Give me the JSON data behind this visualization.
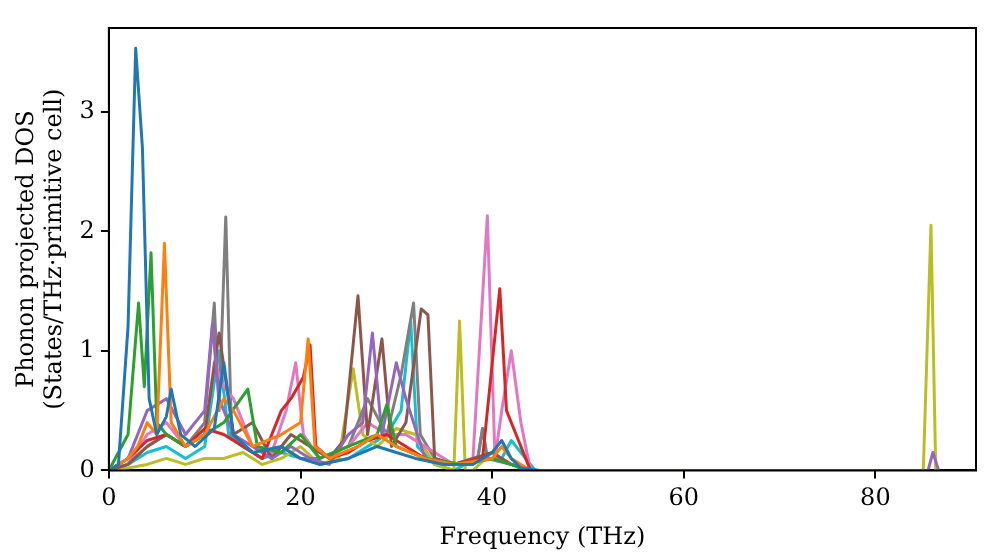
{
  "chart_data": {
    "type": "line",
    "xlabel": "Frequency (THz)",
    "ylabel": "Phonon projected DOS\n(States/THz·primitive cell)",
    "xlim": [
      0,
      90.5
    ],
    "xticks": [
      0,
      20,
      40,
      60,
      80
    ],
    "ylim": [
      0,
      3.7
    ],
    "yticks": [
      0,
      1,
      2,
      3
    ],
    "grid": false,
    "legend": false,
    "marker": "none",
    "line_style": "solid",
    "series": [
      {
        "color": "#1f77b4",
        "x": [
          0,
          1,
          2,
          2.8,
          3.5,
          4.2,
          5,
          6,
          6.5,
          7.5,
          9,
          11,
          12,
          13,
          15,
          18,
          20,
          22,
          25,
          28,
          30,
          32,
          35,
          38,
          40,
          41,
          42,
          43,
          45
        ],
        "values": [
          0,
          0.05,
          1.2,
          3.53,
          2.7,
          0.6,
          0.3,
          0.45,
          0.68,
          0.3,
          0.2,
          0.35,
          0.9,
          0.3,
          0.15,
          0.2,
          0.1,
          0.05,
          0.1,
          0.2,
          0.15,
          0.1,
          0.05,
          0.05,
          0.15,
          0.25,
          0.1,
          0.02,
          0
        ]
      },
      {
        "color": "#ff7f0e",
        "x": [
          0,
          2,
          3,
          4,
          5,
          5.8,
          6.5,
          8,
          10,
          12,
          13,
          15,
          18,
          20,
          20.8,
          21.5,
          23,
          26,
          28,
          30,
          33,
          36,
          40,
          41,
          42,
          44
        ],
        "values": [
          0,
          0.1,
          0.2,
          0.4,
          0.3,
          1.9,
          0.4,
          0.2,
          0.3,
          0.6,
          0.5,
          0.2,
          0.3,
          0.4,
          1.1,
          0.2,
          0.1,
          0.2,
          0.3,
          0.2,
          0.1,
          0.05,
          0.1,
          0.2,
          0.1,
          0
        ]
      },
      {
        "color": "#2ca02c",
        "x": [
          0,
          2,
          3.1,
          3.7,
          4.4,
          5,
          6,
          8,
          10,
          12,
          14.5,
          15.5,
          18,
          20,
          22,
          25,
          28,
          29,
          30,
          33,
          37,
          40,
          42,
          43.5
        ],
        "values": [
          0,
          0.3,
          1.4,
          0.7,
          1.82,
          0.4,
          0.3,
          0.2,
          0.3,
          0.4,
          0.68,
          0.2,
          0.15,
          0.3,
          0.1,
          0.2,
          0.3,
          0.55,
          0.2,
          0.1,
          0.05,
          0.1,
          0.05,
          0
        ]
      },
      {
        "color": "#d62728",
        "x": [
          0,
          2,
          4,
          6,
          8,
          10,
          12,
          14,
          16,
          18,
          19,
          20.3,
          21,
          21.6,
          23,
          25,
          27,
          29,
          31,
          33,
          36,
          39,
          40.8,
          41.5,
          42.5,
          44
        ],
        "values": [
          0,
          0.1,
          0.25,
          0.3,
          0.2,
          0.35,
          0.3,
          0.2,
          0.1,
          0.5,
          0.6,
          0.78,
          1.05,
          0.2,
          0.1,
          0.15,
          0.25,
          0.3,
          0.2,
          0.1,
          0.05,
          0.1,
          1.52,
          0.5,
          0.3,
          0
        ]
      },
      {
        "color": "#9467bd",
        "x": [
          0,
          2,
          4,
          6,
          8,
          10,
          10.8,
          11.5,
          13,
          15,
          17,
          19,
          21,
          23,
          25,
          26.5,
          27.5,
          28.5,
          30,
          31,
          33,
          36,
          40,
          42,
          44,
          85.5,
          86,
          86.6
        ],
        "values": [
          0,
          0.1,
          0.5,
          0.6,
          0.3,
          0.5,
          1.22,
          0.6,
          0.3,
          0.2,
          0.1,
          0.2,
          0.1,
          0.05,
          0.3,
          0.4,
          1.15,
          0.3,
          0.9,
          0.6,
          0.1,
          0.05,
          0.1,
          0.05,
          0,
          0,
          0.15,
          0
        ]
      },
      {
        "color": "#8c564b",
        "x": [
          0,
          2,
          4,
          6,
          8,
          10,
          11.5,
          13,
          15,
          17,
          19,
          21,
          23,
          24.5,
          26,
          27,
          28.5,
          29.5,
          31,
          32.6,
          33.3,
          34,
          36,
          40,
          42,
          44
        ],
        "values": [
          0,
          0.05,
          0.2,
          0.3,
          0.2,
          0.3,
          1.15,
          0.3,
          0.4,
          0.1,
          0.3,
          0.2,
          0.1,
          0.25,
          1.46,
          0.3,
          1.1,
          0.2,
          0.4,
          1.35,
          1.3,
          0.1,
          0.05,
          0.15,
          0.05,
          0
        ]
      },
      {
        "color": "#e377c2",
        "x": [
          0,
          2,
          4,
          6,
          8,
          10,
          11,
          12,
          13,
          15,
          17,
          18.5,
          19.5,
          20.3,
          22,
          25,
          27,
          29,
          31,
          33,
          36,
          38,
          39.5,
          40.3,
          41,
          42,
          43,
          44
        ],
        "values": [
          0,
          0.05,
          0.3,
          0.4,
          0.2,
          0.3,
          0.9,
          0.7,
          0.6,
          0.2,
          0.15,
          0.5,
          0.9,
          0.3,
          0.1,
          0.2,
          0.4,
          0.3,
          0.3,
          0.2,
          0.05,
          0.1,
          2.13,
          0.1,
          0.5,
          1.0,
          0.4,
          0
        ]
      },
      {
        "color": "#7f7f7f",
        "x": [
          0,
          2,
          4,
          6,
          8,
          10,
          11,
          11.5,
          12.2,
          12.8,
          14,
          16,
          18,
          20,
          22,
          25,
          27,
          29,
          30.5,
          31.8,
          32.5,
          34,
          36,
          38.5,
          39,
          39.5,
          42,
          44
        ],
        "values": [
          0,
          0.05,
          0.2,
          0.3,
          0.2,
          0.4,
          1.4,
          0.5,
          2.12,
          0.3,
          0.2,
          0.1,
          0.2,
          0.1,
          0.1,
          0.2,
          0.6,
          0.3,
          0.8,
          1.4,
          0.3,
          0.1,
          0.05,
          0.1,
          0.35,
          0.1,
          0.05,
          0
        ]
      },
      {
        "color": "#bcbd22",
        "x": [
          0,
          2,
          4,
          6,
          8,
          10,
          12,
          14,
          16,
          18,
          20,
          22,
          24,
          25.5,
          26.5,
          28,
          30,
          32,
          34,
          36,
          36.6,
          37.2,
          38,
          40,
          42,
          44,
          85,
          85.8,
          86.3
        ],
        "values": [
          0,
          0.02,
          0.05,
          0.1,
          0.05,
          0.1,
          0.1,
          0.15,
          0.05,
          0.1,
          0.2,
          0.05,
          0.1,
          0.85,
          0.3,
          0.2,
          0.35,
          0.3,
          0.05,
          0,
          1.25,
          0,
          0,
          0.15,
          0.05,
          0,
          0,
          2.05,
          0
        ]
      },
      {
        "color": "#17becf",
        "x": [
          0,
          2,
          4,
          6,
          8,
          10,
          11.5,
          12.5,
          14,
          16,
          18,
          20,
          22,
          25,
          27,
          29,
          30.5,
          31.5,
          32.2,
          34,
          36,
          38.5,
          39,
          39.5,
          41,
          42,
          44.5
        ],
        "values": [
          0,
          0.05,
          0.15,
          0.2,
          0.1,
          0.2,
          1.0,
          0.3,
          0.2,
          0.1,
          0.15,
          0.1,
          0.05,
          0.1,
          0.2,
          0.3,
          0.5,
          1.25,
          0.2,
          0.05,
          0,
          0.1,
          0.35,
          0.1,
          0.1,
          0.25,
          0
        ]
      }
    ]
  }
}
